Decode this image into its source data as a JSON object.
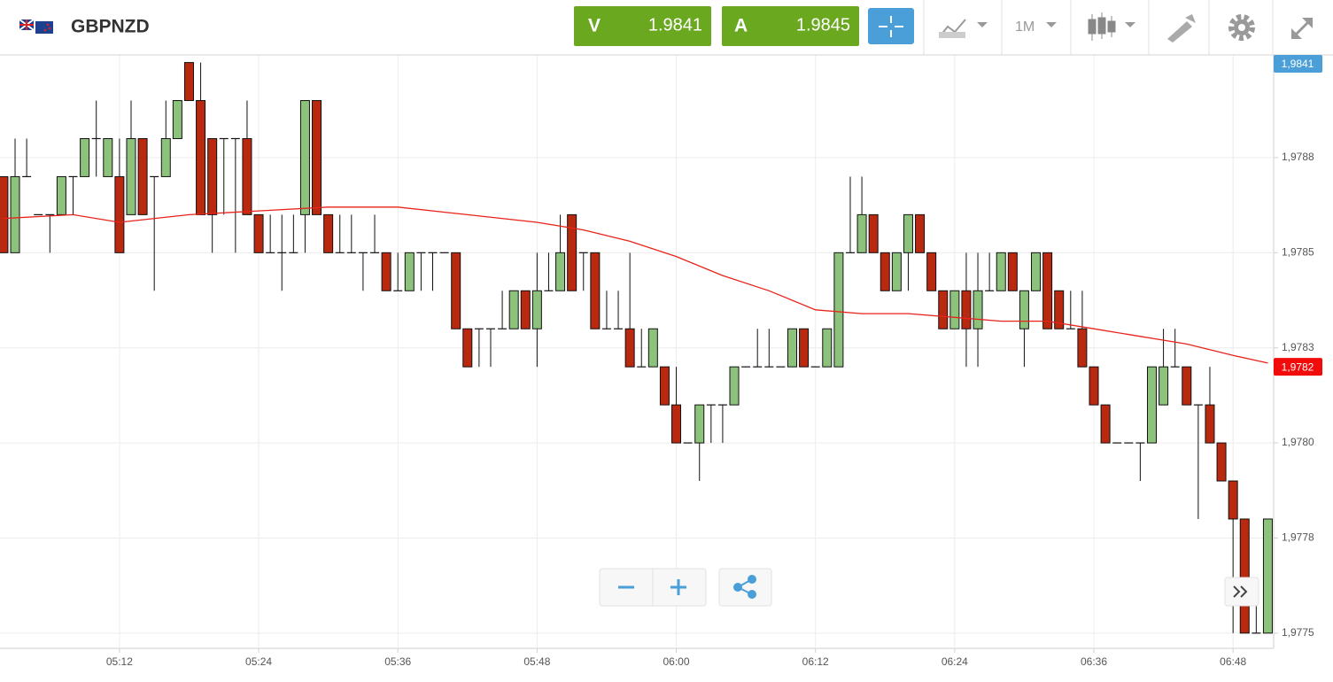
{
  "header": {
    "symbol": "GBPNZD",
    "bid_label": "V",
    "bid": "1.9841",
    "ask_label": "A",
    "ask": "1.9845",
    "timeframe": "1M"
  },
  "chart_data": {
    "type": "candlestick",
    "x": [
      302,
      303,
      304,
      305,
      306,
      307,
      308,
      309,
      310,
      311,
      312,
      313,
      314,
      315,
      316,
      317,
      318,
      319,
      320,
      321,
      322,
      323,
      324,
      325,
      326,
      327,
      328,
      329,
      330,
      331,
      332,
      333,
      334,
      335,
      336,
      337,
      338,
      339,
      340,
      341,
      342,
      343,
      344,
      345,
      346,
      347,
      348,
      349,
      350,
      351,
      352,
      353,
      354,
      355,
      356,
      357,
      358,
      359,
      360,
      361,
      362,
      363,
      364,
      365,
      366,
      367,
      368,
      369,
      370,
      371,
      372,
      373,
      374,
      375,
      376,
      377,
      378,
      379,
      380,
      381,
      382,
      383,
      384,
      385,
      386,
      387,
      388,
      389,
      390,
      391,
      392,
      393,
      394,
      395,
      396,
      397,
      398,
      399,
      400,
      401,
      402,
      403,
      404,
      405,
      406,
      407,
      408,
      409,
      410,
      411
    ],
    "open": [
      1.9787,
      1.9785,
      1.9787,
      1.9786,
      1.9786,
      1.9786,
      1.9787,
      1.9787,
      1.9788,
      1.9787,
      1.9787,
      1.9786,
      1.9788,
      1.9787,
      1.9787,
      1.9788,
      1.979,
      1.9789,
      1.9788,
      1.9788,
      1.9788,
      1.9788,
      1.9786,
      1.9785,
      1.9785,
      1.9785,
      1.9786,
      1.9789,
      1.9786,
      1.9785,
      1.9785,
      1.9785,
      1.9785,
      1.9785,
      1.9784,
      1.9784,
      1.9785,
      1.9785,
      1.9785,
      1.9785,
      1.9783,
      1.9783,
      1.9783,
      1.9783,
      1.9783,
      1.9784,
      1.9783,
      1.9784,
      1.9784,
      1.9786,
      1.9785,
      1.9785,
      1.9783,
      1.9783,
      1.9783,
      1.9782,
      1.9782,
      1.9782,
      1.9781,
      1.978,
      1.978,
      1.9781,
      1.9781,
      1.9781,
      1.9782,
      1.9782,
      1.9782,
      1.9782,
      1.9782,
      1.9783,
      1.9782,
      1.9782,
      1.9782,
      1.9785,
      1.9785,
      1.9786,
      1.9785,
      1.9784,
      1.9785,
      1.9786,
      1.9785,
      1.9784,
      1.9783,
      1.9784,
      1.9783,
      1.9784,
      1.9784,
      1.9785,
      1.9783,
      1.9784,
      1.9785,
      1.9784,
      1.9783,
      1.9783,
      1.9782,
      1.9781,
      1.978,
      1.978,
      1.978,
      1.978,
      1.9781,
      1.9782,
      1.9782,
      1.9781,
      1.9781,
      1.978,
      1.9779,
      1.9778,
      1.9775,
      1.9775
    ],
    "high": [
      1.9787,
      1.9788,
      1.9788,
      1.9786,
      1.9786,
      1.9787,
      1.9787,
      1.9788,
      1.9789,
      1.9788,
      1.9788,
      1.9789,
      1.9788,
      1.9787,
      1.9789,
      1.9789,
      1.979,
      1.979,
      1.9788,
      1.9788,
      1.9788,
      1.9789,
      1.9786,
      1.9786,
      1.9786,
      1.9786,
      1.9789,
      1.9789,
      1.9786,
      1.9786,
      1.9786,
      1.9785,
      1.9786,
      1.9785,
      1.9785,
      1.9785,
      1.9785,
      1.9785,
      1.9785,
      1.9785,
      1.9783,
      1.9783,
      1.9783,
      1.9784,
      1.9784,
      1.9784,
      1.9785,
      1.9785,
      1.9786,
      1.9786,
      1.9785,
      1.9785,
      1.9784,
      1.9784,
      1.9785,
      1.9783,
      1.9783,
      1.9782,
      1.9782,
      1.978,
      1.9781,
      1.9781,
      1.9781,
      1.9782,
      1.9782,
      1.9783,
      1.9783,
      1.9782,
      1.9783,
      1.9783,
      1.9782,
      1.9783,
      1.9785,
      1.9787,
      1.9787,
      1.9786,
      1.9785,
      1.9785,
      1.9786,
      1.9786,
      1.9785,
      1.9784,
      1.9784,
      1.9785,
      1.9785,
      1.9785,
      1.9785,
      1.9785,
      1.9784,
      1.9785,
      1.9785,
      1.9784,
      1.9784,
      1.9784,
      1.9782,
      1.9781,
      1.978,
      1.978,
      1.978,
      1.9782,
      1.9783,
      1.9783,
      1.9782,
      1.9781,
      1.9782,
      1.978,
      1.9779,
      1.9778,
      1.9776,
      1.9778
    ],
    "low": [
      1.9785,
      1.9785,
      1.9787,
      1.9786,
      1.9785,
      1.9786,
      1.9786,
      1.9787,
      1.9787,
      1.9787,
      1.9785,
      1.9786,
      1.9786,
      1.9784,
      1.9787,
      1.9788,
      1.9789,
      1.9786,
      1.9785,
      1.9786,
      1.9785,
      1.9786,
      1.9785,
      1.9785,
      1.9784,
      1.9785,
      1.9785,
      1.9786,
      1.9785,
      1.9785,
      1.9785,
      1.9784,
      1.9785,
      1.9784,
      1.9784,
      1.9784,
      1.9784,
      1.9784,
      1.9785,
      1.9783,
      1.9782,
      1.9782,
      1.9782,
      1.9783,
      1.9783,
      1.9783,
      1.9782,
      1.9784,
      1.9784,
      1.9784,
      1.9784,
      1.9783,
      1.9783,
      1.9783,
      1.9782,
      1.9782,
      1.9782,
      1.9781,
      1.978,
      1.978,
      1.9779,
      1.978,
      1.978,
      1.9781,
      1.9782,
      1.9782,
      1.9782,
      1.9782,
      1.9782,
      1.9782,
      1.9782,
      1.9782,
      1.9782,
      1.9785,
      1.9785,
      1.9785,
      1.9784,
      1.9784,
      1.9784,
      1.9785,
      1.9784,
      1.9783,
      1.9783,
      1.9782,
      1.9782,
      1.9784,
      1.9784,
      1.9784,
      1.9782,
      1.9784,
      1.9783,
      1.9783,
      1.9783,
      1.9782,
      1.9781,
      1.978,
      1.978,
      1.978,
      1.9779,
      1.978,
      1.9781,
      1.9782,
      1.9781,
      1.9778,
      1.978,
      1.9779,
      1.9775,
      1.9775,
      1.9775,
      1.9775
    ],
    "close": [
      1.9785,
      1.9787,
      1.9787,
      1.9786,
      1.9786,
      1.9787,
      1.9787,
      1.9788,
      1.9788,
      1.9788,
      1.9785,
      1.9788,
      1.9786,
      1.9787,
      1.9788,
      1.9789,
      1.9789,
      1.9786,
      1.9786,
      1.9788,
      1.9788,
      1.9786,
      1.9785,
      1.9785,
      1.9785,
      1.9785,
      1.9789,
      1.9786,
      1.9785,
      1.9785,
      1.9785,
      1.9785,
      1.9785,
      1.9784,
      1.9784,
      1.9785,
      1.9785,
      1.9785,
      1.9785,
      1.9783,
      1.9782,
      1.9783,
      1.9783,
      1.9783,
      1.9784,
      1.9783,
      1.9784,
      1.9784,
      1.9785,
      1.9784,
      1.9785,
      1.9783,
      1.9783,
      1.9783,
      1.9782,
      1.9782,
      1.9783,
      1.9781,
      1.978,
      1.978,
      1.9781,
      1.9781,
      1.9781,
      1.9782,
      1.9782,
      1.9782,
      1.9782,
      1.9782,
      1.9783,
      1.9782,
      1.9782,
      1.9783,
      1.9785,
      1.9785,
      1.9786,
      1.9785,
      1.9784,
      1.9785,
      1.9786,
      1.9785,
      1.9784,
      1.9783,
      1.9784,
      1.9783,
      1.9784,
      1.9784,
      1.9785,
      1.9784,
      1.9784,
      1.9785,
      1.9783,
      1.9783,
      1.9783,
      1.9782,
      1.9781,
      1.978,
      1.978,
      1.978,
      1.978,
      1.9782,
      1.9782,
      1.9782,
      1.9781,
      1.9781,
      1.978,
      1.9779,
      1.9778,
      1.9775,
      1.9775,
      1.9778
    ],
    "up_color": "#8cc27c",
    "down_color": "#b8290f",
    "overlay": {
      "color": "#e8231a",
      "x": [
        302,
        308,
        312,
        318,
        324,
        330,
        336,
        342,
        348,
        352,
        356,
        360,
        364,
        368,
        372,
        376,
        380,
        384,
        388,
        392,
        396,
        400,
        404,
        408,
        411
      ],
      "values": [
        1.97859,
        1.9786,
        1.97858,
        1.9786,
        1.97861,
        1.97862,
        1.97862,
        1.9786,
        1.97858,
        1.97856,
        1.97853,
        1.97849,
        1.97844,
        1.9784,
        1.97835,
        1.97834,
        1.97834,
        1.97833,
        1.97832,
        1.97832,
        1.9783,
        1.97828,
        1.97826,
        1.97823,
        1.97821
      ]
    },
    "price_tags": [
      {
        "value": 1.9841,
        "label": "1,9841",
        "color": "#4a9fd8"
      },
      {
        "value": 1.9782,
        "label": "1,9782",
        "color": "#f10b0b"
      }
    ],
    "xlim": [
      301.7,
      411.5
    ],
    "xticks": [
      {
        "value": 312,
        "label": "05:12"
      },
      {
        "value": 324,
        "label": "05:24"
      },
      {
        "value": 336,
        "label": "05:36"
      },
      {
        "value": 348,
        "label": "05:48"
      },
      {
        "value": 360,
        "label": "06:00"
      },
      {
        "value": 372,
        "label": "06:12"
      },
      {
        "value": 384,
        "label": "06:24"
      },
      {
        "value": 396,
        "label": "06:36"
      },
      {
        "value": 408,
        "label": "06:48"
      }
    ],
    "ylim": [
      1.97746,
      1.97902
    ],
    "yticks": [
      {
        "value": 1.9775,
        "label": "1,9775"
      },
      {
        "value": 1.97775,
        "label": "1,9778"
      },
      {
        "value": 1.978,
        "label": "1,9780"
      },
      {
        "value": 1.97825,
        "label": "1,9783"
      },
      {
        "value": 1.9785,
        "label": "1,9785"
      },
      {
        "value": 1.97875,
        "label": "1,9788"
      }
    ],
    "grid": true
  }
}
